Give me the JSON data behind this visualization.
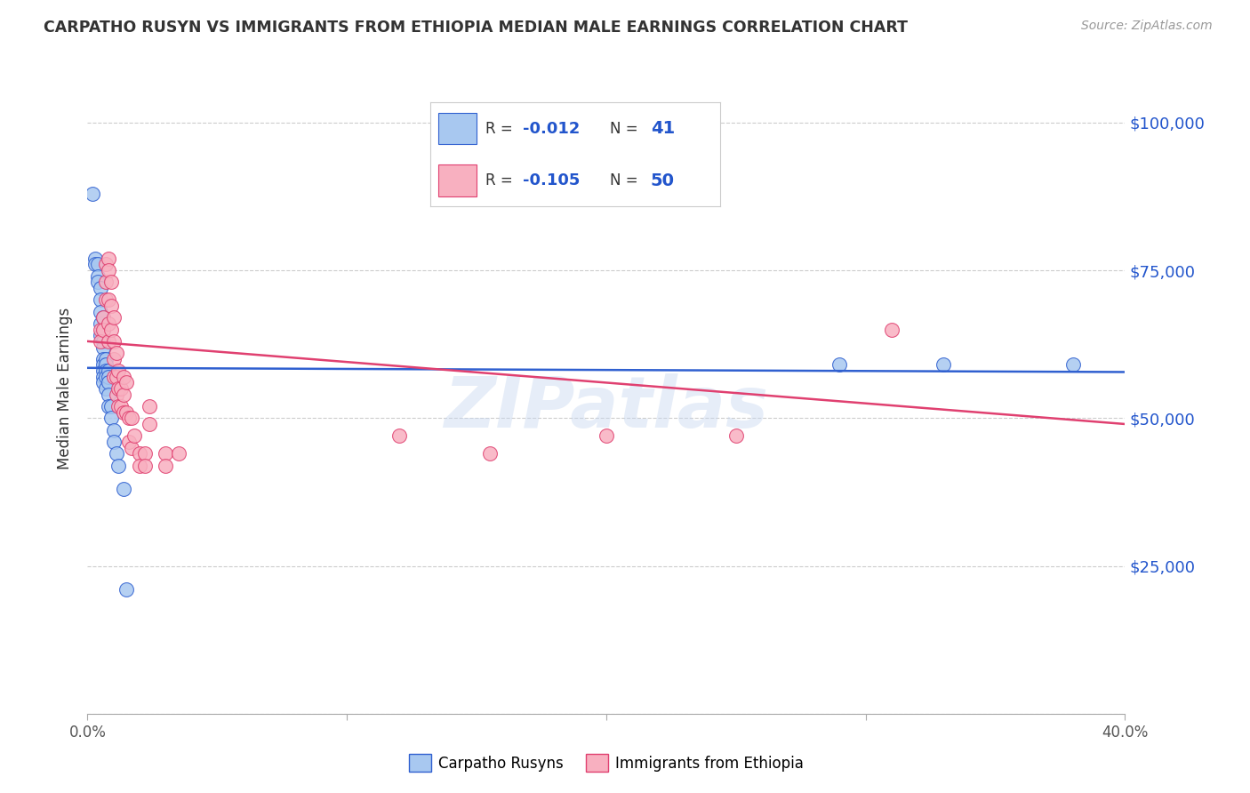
{
  "title": "CARPATHO RUSYN VS IMMIGRANTS FROM ETHIOPIA MEDIAN MALE EARNINGS CORRELATION CHART",
  "source": "Source: ZipAtlas.com",
  "ylabel": "Median Male Earnings",
  "xlim": [
    0.0,
    0.4
  ],
  "ylim": [
    0,
    110000
  ],
  "yticks": [
    0,
    25000,
    50000,
    75000,
    100000
  ],
  "ytick_labels": [
    "",
    "$25,000",
    "$50,000",
    "$75,000",
    "$100,000"
  ],
  "xticks": [
    0.0,
    0.1,
    0.2,
    0.3,
    0.4
  ],
  "xtick_labels": [
    "0.0%",
    "",
    "",
    "",
    "40.0%"
  ],
  "color_blue": "#a8c8f0",
  "color_pink": "#f8b0c0",
  "line_blue": "#3060d0",
  "line_pink": "#e04070",
  "watermark": "ZIPatlas",
  "background": "#ffffff",
  "blue_points": [
    [
      0.002,
      88000
    ],
    [
      0.003,
      77000
    ],
    [
      0.003,
      76000
    ],
    [
      0.004,
      76000
    ],
    [
      0.004,
      74000
    ],
    [
      0.004,
      73000
    ],
    [
      0.005,
      72000
    ],
    [
      0.005,
      70000
    ],
    [
      0.005,
      68000
    ],
    [
      0.005,
      66000
    ],
    [
      0.005,
      64000
    ],
    [
      0.006,
      67000
    ],
    [
      0.006,
      65000
    ],
    [
      0.006,
      63000
    ],
    [
      0.006,
      62000
    ],
    [
      0.006,
      60000
    ],
    [
      0.006,
      59000
    ],
    [
      0.006,
      58000
    ],
    [
      0.006,
      57000
    ],
    [
      0.006,
      56000
    ],
    [
      0.007,
      60000
    ],
    [
      0.007,
      59000
    ],
    [
      0.007,
      58000
    ],
    [
      0.007,
      57000
    ],
    [
      0.007,
      55000
    ],
    [
      0.008,
      58000
    ],
    [
      0.008,
      57000
    ],
    [
      0.008,
      56000
    ],
    [
      0.008,
      54000
    ],
    [
      0.008,
      52000
    ],
    [
      0.009,
      52000
    ],
    [
      0.009,
      50000
    ],
    [
      0.01,
      48000
    ],
    [
      0.01,
      46000
    ],
    [
      0.011,
      44000
    ],
    [
      0.012,
      42000
    ],
    [
      0.014,
      38000
    ],
    [
      0.015,
      21000
    ],
    [
      0.29,
      59000
    ],
    [
      0.33,
      59000
    ],
    [
      0.38,
      59000
    ]
  ],
  "pink_points": [
    [
      0.005,
      65000
    ],
    [
      0.005,
      63000
    ],
    [
      0.006,
      67000
    ],
    [
      0.006,
      65000
    ],
    [
      0.007,
      76000
    ],
    [
      0.007,
      73000
    ],
    [
      0.007,
      70000
    ],
    [
      0.008,
      77000
    ],
    [
      0.008,
      75000
    ],
    [
      0.008,
      70000
    ],
    [
      0.008,
      66000
    ],
    [
      0.008,
      63000
    ],
    [
      0.009,
      73000
    ],
    [
      0.009,
      69000
    ],
    [
      0.009,
      65000
    ],
    [
      0.01,
      67000
    ],
    [
      0.01,
      63000
    ],
    [
      0.01,
      60000
    ],
    [
      0.01,
      57000
    ],
    [
      0.011,
      61000
    ],
    [
      0.011,
      57000
    ],
    [
      0.011,
      54000
    ],
    [
      0.012,
      58000
    ],
    [
      0.012,
      55000
    ],
    [
      0.012,
      52000
    ],
    [
      0.013,
      55000
    ],
    [
      0.013,
      52000
    ],
    [
      0.014,
      57000
    ],
    [
      0.014,
      54000
    ],
    [
      0.014,
      51000
    ],
    [
      0.015,
      56000
    ],
    [
      0.015,
      51000
    ],
    [
      0.016,
      50000
    ],
    [
      0.016,
      46000
    ],
    [
      0.017,
      50000
    ],
    [
      0.017,
      45000
    ],
    [
      0.018,
      47000
    ],
    [
      0.02,
      44000
    ],
    [
      0.02,
      42000
    ],
    [
      0.022,
      44000
    ],
    [
      0.022,
      42000
    ],
    [
      0.024,
      52000
    ],
    [
      0.024,
      49000
    ],
    [
      0.03,
      44000
    ],
    [
      0.03,
      42000
    ],
    [
      0.035,
      44000
    ],
    [
      0.12,
      47000
    ],
    [
      0.155,
      44000
    ],
    [
      0.2,
      47000
    ],
    [
      0.25,
      47000
    ],
    [
      0.31,
      65000
    ]
  ],
  "blue_line_x0": 0.0,
  "blue_line_y0": 58500,
  "blue_line_x1": 0.4,
  "blue_line_y1": 57800,
  "pink_line_x0": 0.0,
  "pink_line_y0": 63000,
  "pink_line_x1": 0.4,
  "pink_line_y1": 49000
}
